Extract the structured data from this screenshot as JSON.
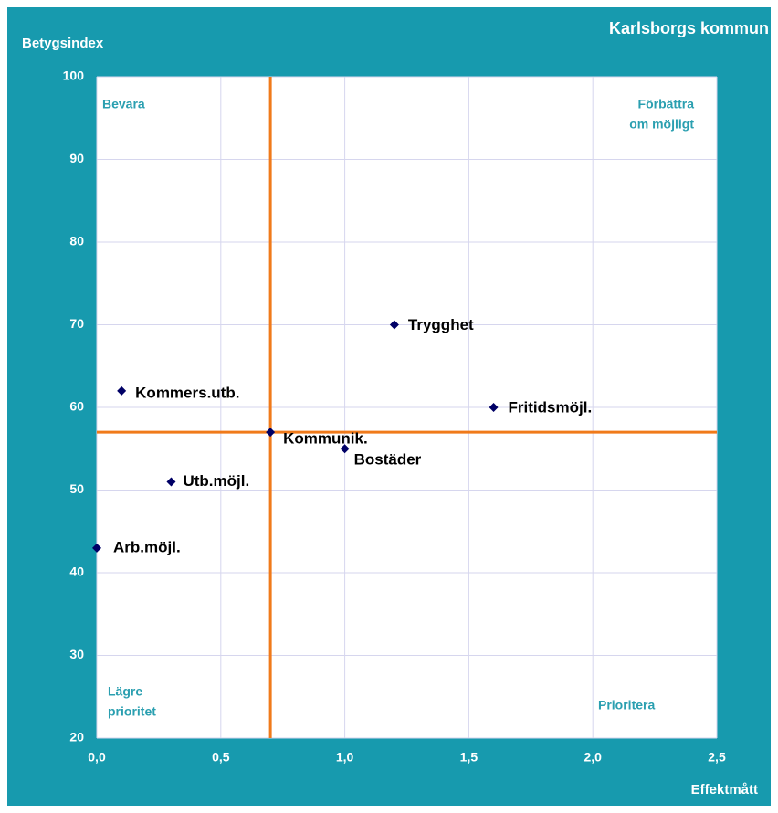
{
  "chart_data": {
    "type": "scatter",
    "title": "Karlsborgs kommun",
    "ylabel": "Betygsindex",
    "xlabel": "Effektmått",
    "points": [
      {
        "label": "Arb.möjl.",
        "x": 0.0,
        "y": 43
      },
      {
        "label": "Utb.möjl.",
        "x": 0.3,
        "y": 51
      },
      {
        "label": "Kommers.utb.",
        "x": 0.1,
        "y": 62
      },
      {
        "label": "Kommunik.",
        "x": 0.7,
        "y": 57
      },
      {
        "label": "Bostäder",
        "x": 1.0,
        "y": 55
      },
      {
        "label": "Trygghet",
        "x": 1.2,
        "y": 70
      },
      {
        "label": "Fritidsmöjl.",
        "x": 1.6,
        "y": 60
      }
    ],
    "color": "#000066",
    "reference_lines": {
      "x": 0.7,
      "y": 57,
      "color": "#f07a1a"
    },
    "quadrants": {
      "top_left": [
        "Bevara"
      ],
      "top_right": [
        "Förbättra",
        "om möjligt"
      ],
      "bottom_left": [
        "Lägre",
        "prioritet"
      ],
      "bottom_right": [
        "Prioritera"
      ]
    },
    "xlim": [
      0,
      2.5
    ],
    "xticks": [
      {
        "value": 0,
        "label": "0,0"
      },
      {
        "value": 0.5,
        "label": "0,5"
      },
      {
        "value": 1.0,
        "label": "1,0"
      },
      {
        "value": 1.5,
        "label": "1,5"
      },
      {
        "value": 2.0,
        "label": "2,0"
      },
      {
        "value": 2.5,
        "label": "2,5"
      }
    ],
    "ylim": [
      20,
      100
    ],
    "yticks": [
      20,
      30,
      40,
      50,
      60,
      70,
      80,
      90,
      100
    ],
    "grid": true
  }
}
